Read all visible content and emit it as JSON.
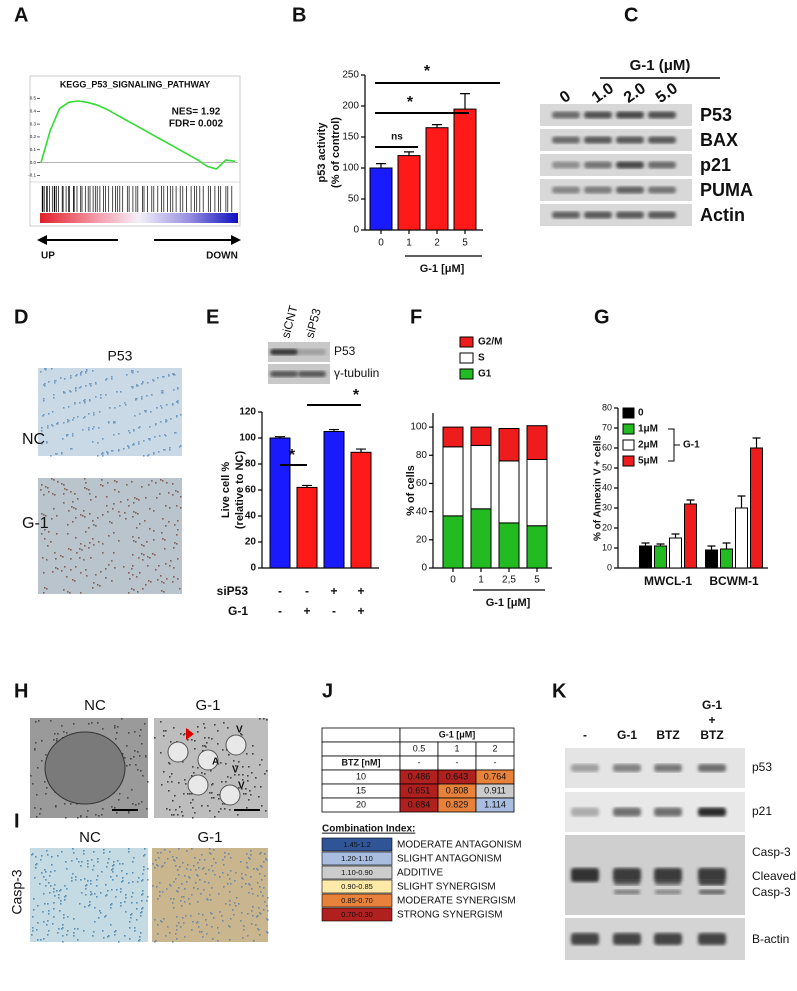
{
  "panel_letters": [
    "A",
    "B",
    "C",
    "D",
    "E",
    "F",
    "G",
    "H",
    "I",
    "J",
    "K"
  ],
  "chart_data": [
    {
      "type": "line",
      "title": "KEGG_P53_SIGNALING_PATHWAY",
      "annotations": [
        "NES= 1.92",
        "FDR= 0.002"
      ],
      "direction_labels": [
        "UP",
        "DOWN"
      ],
      "values": [
        0,
        0.25,
        0.42,
        0.47,
        0.48,
        0.47,
        0.45,
        0.42,
        0.38,
        0.34,
        0.3,
        0.26,
        0.22,
        0.18,
        0.14,
        0.1,
        0.06,
        0.02,
        -0.03,
        -0.05,
        0.02,
        0.01
      ],
      "color": "#33dd33",
      "ylim": [
        -0.12,
        0.55
      ],
      "yticks": [
        0.5,
        0.4,
        0.3,
        0.2,
        0.1,
        {
          "value": 0,
          "label": "0.0"
        },
        -0.1
      ]
    },
    {
      "type": "bar",
      "ylabel": [
        "p53 activity",
        "(% of control)"
      ],
      "categories": [
        "0",
        "1",
        "2",
        "5"
      ],
      "values": [
        100,
        120,
        165,
        195
      ],
      "errors": [
        7,
        6,
        5,
        25
      ],
      "colors": [
        "#1a1aff",
        "#ff1a1a",
        "#ff1a1a",
        "#ff1a1a"
      ],
      "ylim": [
        0,
        250
      ],
      "yticks": [
        0,
        50,
        100,
        150,
        200,
        250
      ],
      "xlabel": "G-1 [μM]",
      "annotations": [
        "*",
        "*",
        "ns"
      ]
    },
    {
      "type": "bar",
      "ylabel": [
        "Live cell %",
        "(relative to NC)"
      ],
      "values": [
        100,
        62,
        105,
        89
      ],
      "errors": [
        1,
        1.5,
        1.5,
        2.5
      ],
      "colors": [
        "#1a1aff",
        "#ff1a1a",
        "#1a1aff",
        "#ff1a1a"
      ],
      "ylim": [
        0,
        120
      ],
      "yticks": [
        0,
        20,
        40,
        60,
        80,
        100,
        120
      ],
      "annotations": [
        "*",
        "*"
      ],
      "conditions": [
        {
          "label": "siP53",
          "values": [
            "-",
            "-",
            "+",
            "+"
          ]
        },
        {
          "label": "G-1",
          "values": [
            "-",
            "+",
            "-",
            "+"
          ]
        }
      ]
    },
    {
      "type": "stacked_bar",
      "ylabel": "% of cells",
      "categories": [
        "0",
        "1",
        "2,5",
        "5"
      ],
      "xlabel": "G-1 [μM]",
      "ylim": [
        0,
        110
      ],
      "yticks": [
        0,
        20,
        40,
        60,
        80,
        100
      ],
      "series": [
        {
          "name": "G1",
          "color": "#22bb22",
          "values": [
            37,
            42,
            32,
            30
          ]
        },
        {
          "name": "S",
          "color": "#ffffff",
          "values": [
            49,
            45,
            44,
            47
          ]
        },
        {
          "name": "G2/M",
          "color": "#ee1c1c",
          "values": [
            14,
            13,
            23,
            24
          ]
        }
      ]
    },
    {
      "type": "grouped_bar",
      "ylabel": "% of Annexin V + cells",
      "categories": [
        "MWCL-1",
        "BCWM-1"
      ],
      "legend_group": "G-1",
      "ylim": [
        0,
        80
      ],
      "yticks": [
        0,
        10,
        20,
        30,
        40,
        50,
        60,
        70,
        80
      ],
      "series": [
        {
          "name": "0",
          "color": "#000000",
          "values": [
            11,
            9
          ],
          "errors": [
            1.5,
            2
          ]
        },
        {
          "name": "1μM",
          "color": "#22bb22",
          "values": [
            11,
            9.5
          ],
          "errors": [
            1,
            3
          ]
        },
        {
          "name": "2μM",
          "color": "#ffffff",
          "values": [
            15,
            30
          ],
          "errors": [
            2,
            6
          ]
        },
        {
          "name": "5μM",
          "color": "#ee1c1c",
          "values": [
            32,
            60
          ],
          "errors": [
            2,
            5
          ]
        }
      ]
    }
  ],
  "panels": {
    "C": {
      "title": "G-1 (μM)",
      "lanes": [
        "0",
        "1.0",
        "2.0",
        "5.0"
      ],
      "bands": [
        "P53",
        "BAX",
        "p21",
        "PUMA",
        "Actin"
      ]
    },
    "D": {
      "stain": "P53",
      "rows": [
        "NC",
        "G-1"
      ]
    },
    "E": {
      "lanes": [
        "siCNT",
        "siP53"
      ],
      "bands": [
        "P53",
        "γ-tubulin"
      ]
    },
    "H": {
      "columns": [
        "NC",
        "G-1"
      ],
      "marks": [
        "V",
        "A",
        "V",
        "V"
      ]
    },
    "I": {
      "columns": [
        "NC",
        "G-1"
      ],
      "stain": "Casp-3"
    },
    "J": {
      "column_header": "G-1 [μM]",
      "columns": [
        "0.5",
        "1",
        "2"
      ],
      "row_header": "BTZ [nM]",
      "header_dashes": [
        "-",
        "-",
        "-"
      ],
      "rows": [
        [
          "10",
          "0.486",
          "0.643",
          "0.764"
        ],
        [
          "15",
          "0.651",
          "0.808",
          "0.911"
        ],
        [
          "20",
          "0.684",
          "0.829",
          "1.114"
        ]
      ],
      "cell_colors": [
        [
          "#b0201e",
          "#b0201e",
          "#e8823a"
        ],
        [
          "#b0201e",
          "#e8823a",
          "#cccccc"
        ],
        [
          "#b0201e",
          "#e8823a",
          "#a8bde0"
        ]
      ],
      "legend_title": "Combination Index:",
      "legend": [
        {
          "range": "1.45-1.2",
          "label": "MODERATE ANTAGONISM",
          "color": "#2f5597"
        },
        {
          "range": "1.20-1.10",
          "label": "SLIGHT ANTAGONISM",
          "color": "#a8bde0"
        },
        {
          "range": "1.10-0.90",
          "label": "ADDITIVE",
          "color": "#cccccc"
        },
        {
          "range": "0.90-0.85",
          "label": "SLIGHT SYNERGISM",
          "color": "#fde9a8"
        },
        {
          "range": "0.85-0.70",
          "label": "MODERATE  SYNERGISM",
          "color": "#e8823a"
        },
        {
          "range": "0.70-0.30",
          "label": "STRONG  SYNERGISM",
          "color": "#b0201e"
        }
      ]
    },
    "K": {
      "lanes": [
        "-",
        "G-1",
        "BTZ"
      ],
      "combo_lane": [
        "G-1",
        "+",
        "BTZ"
      ],
      "bands": [
        "p53",
        "p21",
        "Casp-3",
        "B-actin"
      ],
      "cleaved": [
        "Cleaved",
        "Casp-3"
      ]
    }
  }
}
